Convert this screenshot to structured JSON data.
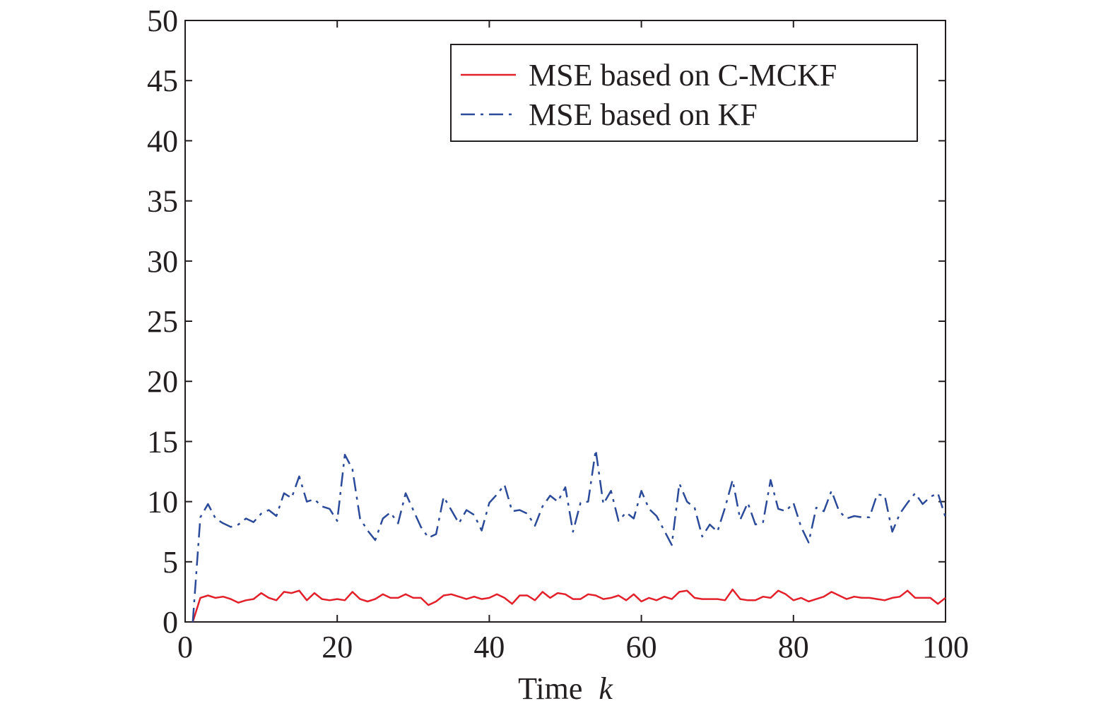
{
  "chart_data": {
    "type": "line",
    "title": "",
    "xlabel": "Time",
    "xlabel_var": "k",
    "ylabel": "",
    "xlim": [
      0,
      100
    ],
    "ylim": [
      0,
      50
    ],
    "xticks": [
      0,
      20,
      40,
      60,
      80,
      100
    ],
    "yticks": [
      0,
      5,
      10,
      15,
      20,
      25,
      30,
      35,
      40,
      45,
      50
    ],
    "grid": false,
    "legend_position": "top-right",
    "x": [
      1,
      2,
      3,
      4,
      5,
      6,
      7,
      8,
      9,
      10,
      11,
      12,
      13,
      14,
      15,
      16,
      17,
      18,
      19,
      20,
      21,
      22,
      23,
      24,
      25,
      26,
      27,
      28,
      29,
      30,
      31,
      32,
      33,
      34,
      35,
      36,
      37,
      38,
      39,
      40,
      41,
      42,
      43,
      44,
      45,
      46,
      47,
      48,
      49,
      50,
      51,
      52,
      53,
      54,
      55,
      56,
      57,
      58,
      59,
      60,
      61,
      62,
      63,
      64,
      65,
      66,
      67,
      68,
      69,
      70,
      71,
      72,
      73,
      74,
      75,
      76,
      77,
      78,
      79,
      80,
      81,
      82,
      83,
      84,
      85,
      86,
      87,
      88,
      89,
      90,
      91,
      92,
      93,
      94,
      95,
      96,
      97,
      98,
      99,
      100
    ],
    "series": [
      {
        "name": "MSE based on C-MCKF",
        "color": "#e3202a",
        "style": "solid",
        "values": [
          0.0,
          2.0,
          2.2,
          2.0,
          2.1,
          1.9,
          1.6,
          1.8,
          1.9,
          2.4,
          2.0,
          1.8,
          2.5,
          2.4,
          2.6,
          1.8,
          2.4,
          1.9,
          1.8,
          1.9,
          1.8,
          2.5,
          1.9,
          1.7,
          1.9,
          2.3,
          2.0,
          2.0,
          2.3,
          2.0,
          2.0,
          1.4,
          1.7,
          2.2,
          2.3,
          2.1,
          1.9,
          2.1,
          1.9,
          2.0,
          2.3,
          2.0,
          1.5,
          2.2,
          2.2,
          1.8,
          2.5,
          2.0,
          2.4,
          2.3,
          1.9,
          1.9,
          2.3,
          2.2,
          1.9,
          2.0,
          2.2,
          1.8,
          2.3,
          1.7,
          2.0,
          1.8,
          2.1,
          1.9,
          2.5,
          2.6,
          2.0,
          1.9,
          1.9,
          1.9,
          1.8,
          2.7,
          1.9,
          1.8,
          1.8,
          2.1,
          2.0,
          2.6,
          2.3,
          1.8,
          2.0,
          1.7,
          1.9,
          2.1,
          2.5,
          2.2,
          1.9,
          2.1,
          2.0,
          2.0,
          1.9,
          1.8,
          2.0,
          2.1,
          2.6,
          2.0,
          2.0,
          2.0,
          1.5,
          2.0
        ]
      },
      {
        "name": "MSE based on KF",
        "color": "#2b4a9a",
        "style": "dash-dot",
        "values": [
          0.0,
          8.7,
          9.8,
          8.6,
          8.2,
          7.9,
          8.1,
          8.6,
          8.3,
          9.0,
          9.3,
          8.8,
          10.7,
          10.3,
          12.1,
          10.0,
          10.2,
          9.6,
          9.4,
          8.4,
          13.9,
          12.7,
          8.6,
          7.6,
          6.8,
          8.6,
          9.1,
          8.2,
          10.7,
          9.3,
          7.9,
          7.0,
          7.3,
          10.4,
          9.3,
          8.2,
          9.3,
          8.9,
          7.6,
          9.9,
          10.6,
          11.4,
          9.2,
          9.3,
          9.0,
          8.0,
          9.6,
          10.5,
          10.0,
          11.2,
          7.5,
          9.9,
          10.0,
          14.3,
          9.8,
          10.9,
          8.4,
          9.1,
          8.6,
          10.9,
          9.4,
          8.8,
          7.6,
          6.4,
          11.5,
          10.0,
          9.5,
          7.1,
          8.1,
          7.5,
          9.5,
          11.8,
          8.5,
          9.9,
          8.1,
          8.3,
          11.8,
          9.4,
          9.2,
          9.9,
          7.9,
          6.6,
          9.5,
          9.2,
          10.9,
          9.2,
          8.6,
          8.8,
          8.7,
          8.7,
          10.6,
          10.5,
          7.5,
          9.0,
          9.9,
          10.7,
          9.8,
          10.4,
          10.7,
          8.7
        ]
      }
    ]
  }
}
